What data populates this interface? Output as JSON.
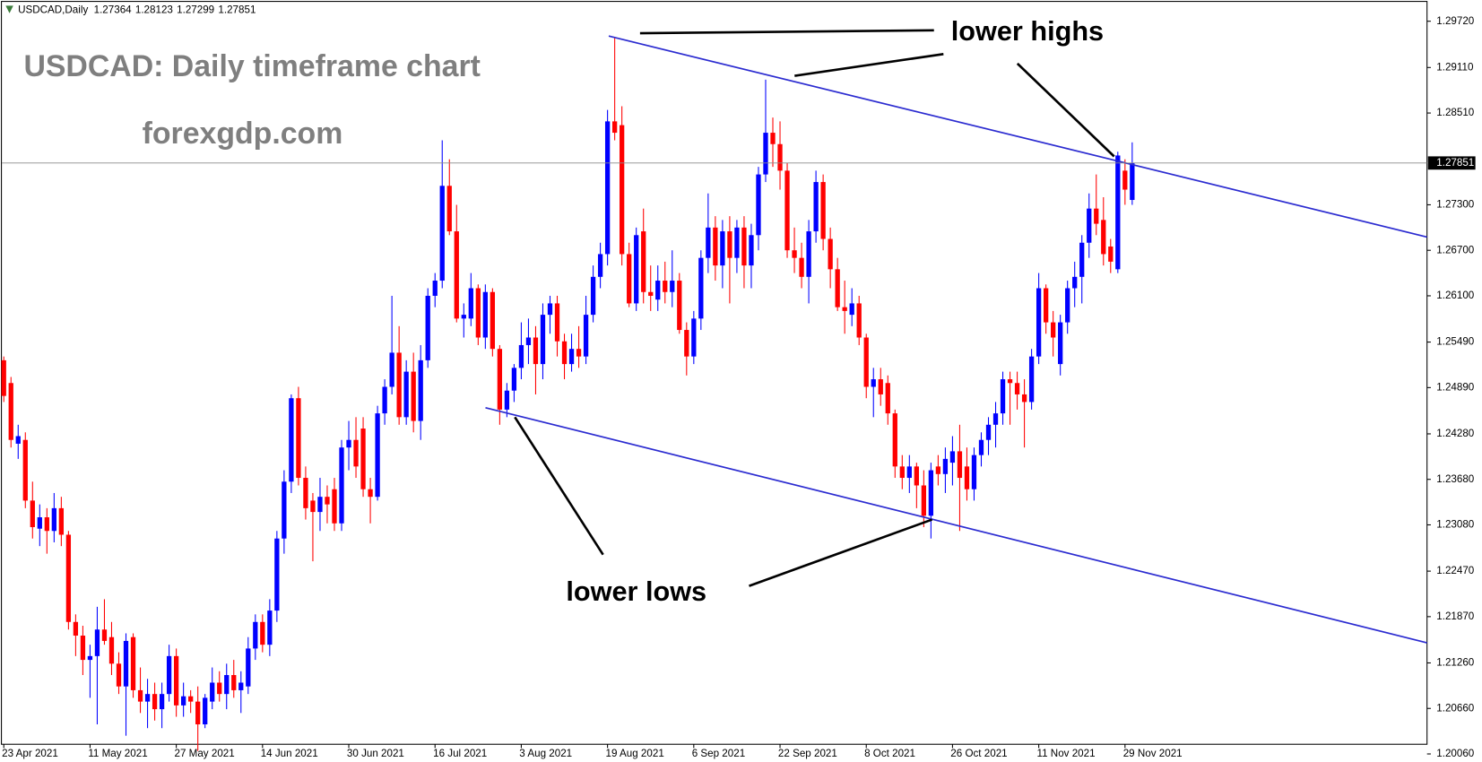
{
  "chart_data": {
    "type": "candlestick",
    "symbol": "USDCAD,Daily",
    "watermark_title": "USDCAD: Daily timeframe chart",
    "watermark_site": "forexgdp.com",
    "annotation_highs": "lower highs",
    "annotation_lows": "lower lows",
    "up_color": "#0000ff",
    "down_color": "#ff0000",
    "x": [
      "23 Apr 2021",
      null,
      null,
      null,
      null,
      null,
      null,
      null,
      null,
      null,
      null,
      null,
      "11 May 2021",
      null,
      null,
      null,
      null,
      null,
      null,
      null,
      null,
      null,
      null,
      null,
      "27 May 2021",
      null,
      null,
      null,
      null,
      null,
      null,
      null,
      null,
      null,
      null,
      null,
      "14 Jun 2021",
      null,
      null,
      null,
      null,
      null,
      null,
      null,
      null,
      null,
      null,
      null,
      "30 Jun 2021",
      null,
      null,
      null,
      null,
      null,
      null,
      null,
      null,
      null,
      null,
      null,
      "16 Jul 2021",
      null,
      null,
      null,
      null,
      null,
      null,
      null,
      null,
      null,
      null,
      null,
      "3 Aug 2021",
      null,
      null,
      null,
      null,
      null,
      null,
      null,
      null,
      null,
      null,
      null,
      "19 Aug 2021",
      null,
      null,
      null,
      null,
      null,
      null,
      null,
      null,
      null,
      null,
      null,
      "6 Sep 2021",
      null,
      null,
      null,
      null,
      null,
      null,
      null,
      null,
      null,
      null,
      null,
      "22 Sep 2021",
      null,
      null,
      null,
      null,
      null,
      null,
      null,
      null,
      null,
      null,
      null,
      "8 Oct 2021",
      null,
      null,
      null,
      null,
      null,
      null,
      null,
      null,
      null,
      null,
      null,
      "26 Oct 2021",
      null,
      null,
      null,
      null,
      null,
      null,
      null,
      null,
      null,
      null,
      null,
      "11 Nov 2021",
      null,
      null,
      null,
      null,
      null,
      null,
      null,
      null,
      null,
      null,
      null,
      "29 Nov 2021",
      null
    ],
    "open": [
      1.2525,
      1.2495,
      1.2415,
      1.242,
      1.234,
      1.2303,
      1.2318,
      1.23,
      1.233,
      1.2295,
      1.218,
      1.2162,
      1.213,
      1.2135,
      1.217,
      1.216,
      1.2125,
      1.2095,
      1.216,
      1.209,
      1.2075,
      1.2085,
      1.2065,
      1.2085,
      1.2135,
      1.207,
      1.2082,
      1.2075,
      1.2045,
      1.2075,
      1.21,
      1.2085,
      1.211,
      1.209,
      1.2095,
      1.2145,
      1.218,
      1.215,
      1.2195,
      1.229,
      1.2365,
      1.2475,
      1.237,
      1.234,
      1.2325,
      1.2345,
      1.2355,
      1.231,
      1.241,
      1.242,
      1.2435,
      1.2355,
      1.2345,
      1.2455,
      1.249,
      1.2535,
      1.245,
      1.251,
      1.2445,
      1.2525,
      1.261,
      1.263,
      1.2755,
      1.2695,
      1.258,
      1.258,
      1.262,
      1.2555,
      1.2615,
      1.254,
      1.246,
      1.2485,
      1.2515,
      1.2545,
      1.2555,
      1.252,
      1.2585,
      1.26,
      1.255,
      1.252,
      1.254,
      1.253,
      1.2585,
      1.2635,
      1.2665,
      1.284,
      1.2835,
      1.2665,
      1.26,
      1.2695,
      1.2615,
      1.2605,
      1.263,
      1.2615,
      1.263,
      1.2565,
      1.253,
      1.258,
      1.266,
      1.27,
      1.265,
      1.2695,
      1.266,
      1.27,
      1.265,
      1.269,
      1.277,
      1.2825,
      1.281,
      1.2775,
      1.267,
      1.266,
      1.2635,
      1.2695,
      1.276,
      1.2685,
      1.2645,
      1.2595,
      1.2585,
      1.26,
      1.2555,
      1.249,
      1.25,
      1.2495,
      1.2455,
      1.2385,
      1.237,
      1.2385,
      1.236,
      1.232,
      1.2385,
      1.2375,
      1.239,
      1.2405,
      1.2385,
      1.2355,
      1.24,
      1.242,
      1.244,
      1.2455,
      1.25,
      1.2495,
      1.248,
      1.247,
      1.253,
      1.262,
      1.2575,
      1.252,
      1.2575,
      1.262,
      1.2635,
      1.268,
      1.2725,
      1.271,
      1.2675,
      1.2645,
      1.2775,
      1.27364
    ],
    "high": [
      1.253,
      1.2503,
      1.244,
      1.243,
      1.2365,
      1.2335,
      1.233,
      1.235,
      1.2345,
      1.23,
      1.219,
      1.2175,
      1.215,
      1.22,
      1.221,
      1.218,
      1.214,
      1.2165,
      1.2165,
      1.212,
      1.2105,
      1.21,
      1.21,
      1.215,
      1.2145,
      1.21,
      1.209,
      1.2095,
      1.2085,
      1.212,
      1.2115,
      1.2125,
      1.213,
      1.2115,
      1.216,
      1.219,
      1.219,
      1.221,
      1.23,
      1.238,
      1.248,
      1.249,
      1.2385,
      1.235,
      1.237,
      1.236,
      1.237,
      1.242,
      1.2445,
      1.245,
      1.245,
      1.237,
      1.2465,
      1.25,
      1.261,
      1.257,
      1.2525,
      1.2535,
      1.2545,
      1.262,
      1.264,
      1.2815,
      1.279,
      1.273,
      1.26,
      1.264,
      1.2625,
      1.2625,
      1.262,
      1.2545,
      1.2495,
      1.252,
      1.2575,
      1.258,
      1.257,
      1.26,
      1.261,
      1.261,
      1.256,
      1.256,
      1.257,
      1.261,
      1.265,
      1.268,
      1.2855,
      1.295,
      1.286,
      1.268,
      1.27,
      1.2725,
      1.265,
      1.265,
      1.2655,
      1.267,
      1.264,
      1.2575,
      1.259,
      1.267,
      1.2745,
      1.2715,
      1.271,
      1.2715,
      1.271,
      1.2715,
      1.2705,
      1.278,
      1.2895,
      1.2845,
      1.284,
      1.2785,
      1.27,
      1.268,
      1.271,
      1.2775,
      1.277,
      1.27,
      1.266,
      1.263,
      1.262,
      1.261,
      1.256,
      1.2515,
      1.2515,
      1.2505,
      1.246,
      1.24,
      1.24,
      1.239,
      1.238,
      1.239,
      1.24,
      1.241,
      1.2425,
      1.244,
      1.241,
      1.241,
      1.243,
      1.245,
      1.247,
      1.251,
      1.251,
      1.251,
      1.25,
      1.254,
      1.264,
      1.2625,
      1.259,
      1.2585,
      1.263,
      1.2655,
      1.269,
      1.2745,
      1.277,
      1.274,
      1.2685,
      1.28,
      1.279,
      1.28123
    ],
    "low": [
      1.247,
      1.241,
      1.2395,
      1.233,
      1.229,
      1.228,
      1.227,
      1.2285,
      1.228,
      1.217,
      1.2135,
      1.211,
      1.208,
      1.2045,
      1.215,
      1.211,
      1.2085,
      1.203,
      1.208,
      1.206,
      1.204,
      1.205,
      1.204,
      1.2075,
      1.2055,
      1.2055,
      1.206,
      1.201,
      1.204,
      1.2065,
      1.2075,
      1.2065,
      1.208,
      1.206,
      1.2085,
      1.213,
      1.214,
      1.2135,
      1.218,
      1.227,
      1.235,
      1.236,
      1.2315,
      1.226,
      1.23,
      1.231,
      1.23,
      1.23,
      1.238,
      1.237,
      1.2345,
      1.231,
      1.234,
      1.244,
      1.248,
      1.244,
      1.244,
      1.243,
      1.242,
      1.2515,
      1.2595,
      1.262,
      1.269,
      1.2575,
      1.2555,
      1.257,
      1.2545,
      1.254,
      1.253,
      1.244,
      1.245,
      1.247,
      1.25,
      1.252,
      1.248,
      1.25,
      1.256,
      1.253,
      1.25,
      1.251,
      1.2515,
      1.252,
      1.2575,
      1.262,
      1.265,
      1.2815,
      1.265,
      1.2595,
      1.259,
      1.26,
      1.259,
      1.259,
      1.26,
      1.2595,
      1.256,
      1.2505,
      1.252,
      1.2565,
      1.264,
      1.263,
      1.262,
      1.26,
      1.264,
      1.262,
      1.262,
      1.267,
      1.276,
      1.278,
      1.275,
      1.266,
      1.264,
      1.262,
      1.26,
      1.268,
      1.267,
      1.262,
      1.259,
      1.256,
      1.257,
      1.2545,
      1.2475,
      1.245,
      1.2465,
      1.244,
      1.237,
      1.2355,
      1.235,
      1.233,
      1.2305,
      1.229,
      1.236,
      1.235,
      1.236,
      1.23,
      1.234,
      1.234,
      1.2385,
      1.24,
      1.241,
      1.244,
      1.244,
      1.246,
      1.241,
      1.246,
      1.252,
      1.256,
      1.253,
      1.2505,
      1.256,
      1.2595,
      1.26,
      1.266,
      1.269,
      1.265,
      1.264,
      1.264,
      1.273,
      1.27299
    ],
    "close": [
      1.2478,
      1.242,
      1.2425,
      1.234,
      1.2305,
      1.2318,
      1.23,
      1.233,
      1.2295,
      1.218,
      1.2162,
      1.213,
      1.2135,
      1.217,
      1.2155,
      1.2125,
      1.2095,
      1.2155,
      1.209,
      1.2075,
      1.2085,
      1.2065,
      1.2085,
      1.2135,
      1.207,
      1.2082,
      1.2075,
      1.2045,
      1.208,
      1.21,
      1.2085,
      1.211,
      1.209,
      1.21,
      1.2145,
      1.218,
      1.215,
      1.2195,
      1.229,
      1.2365,
      1.2475,
      1.237,
      1.233,
      1.2325,
      1.2345,
      1.2335,
      1.231,
      1.241,
      1.242,
      1.2385,
      1.2355,
      1.2345,
      1.2455,
      1.249,
      1.2535,
      1.245,
      1.251,
      1.2445,
      1.2525,
      1.261,
      1.263,
      1.2755,
      1.2695,
      1.258,
      1.2585,
      1.262,
      1.2555,
      1.2615,
      1.254,
      1.246,
      1.2485,
      1.2515,
      1.2545,
      1.2555,
      1.252,
      1.2585,
      1.26,
      1.255,
      1.252,
      1.254,
      1.253,
      1.2585,
      1.2635,
      1.2665,
      1.284,
      1.2825,
      1.2665,
      1.26,
      1.269,
      1.2615,
      1.261,
      1.263,
      1.2615,
      1.263,
      1.2565,
      1.253,
      1.258,
      1.266,
      1.27,
      1.265,
      1.2695,
      1.266,
      1.27,
      1.265,
      1.269,
      1.277,
      1.2825,
      1.281,
      1.2775,
      1.267,
      1.266,
      1.2635,
      1.2695,
      1.276,
      1.2685,
      1.2645,
      1.2595,
      1.259,
      1.26,
      1.2555,
      1.249,
      1.25,
      1.248,
      1.2455,
      1.2385,
      1.237,
      1.2385,
      1.236,
      1.232,
      1.238,
      1.2375,
      1.2395,
      1.2405,
      1.237,
      1.2355,
      1.24,
      1.242,
      1.244,
      1.2455,
      1.25,
      1.2495,
      1.248,
      1.247,
      1.253,
      1.262,
      1.2575,
      1.2555,
      1.2575,
      1.262,
      1.2635,
      1.268,
      1.2725,
      1.2705,
      1.2665,
      1.2655,
      1.2795,
      1.275,
      1.27851
    ],
    "ylim": [
      1.2,
      1.3
    ],
    "yticks": [
      {
        "value": 1.2972,
        "label": "1.29720"
      },
      {
        "value": 1.2911,
        "label": "1.29110"
      },
      {
        "value": 1.2851,
        "label": "1.28510"
      },
      {
        "value": 1.273,
        "label": "1.27300"
      },
      {
        "value": 1.267,
        "label": "1.26700"
      },
      {
        "value": 1.261,
        "label": "1.26100"
      },
      {
        "value": 1.2549,
        "label": "1.25490"
      },
      {
        "value": 1.2489,
        "label": "1.24890"
      },
      {
        "value": 1.2428,
        "label": "1.24280"
      },
      {
        "value": 1.2368,
        "label": "1.23680"
      },
      {
        "value": 1.2308,
        "label": "1.23080"
      },
      {
        "value": 1.2247,
        "label": "1.22470"
      },
      {
        "value": 1.2187,
        "label": "1.21870"
      },
      {
        "value": 1.2126,
        "label": "1.21260"
      },
      {
        "value": 1.2066,
        "label": "1.20660"
      },
      {
        "value": 1.2006,
        "label": "1.20060"
      }
    ]
  }
}
